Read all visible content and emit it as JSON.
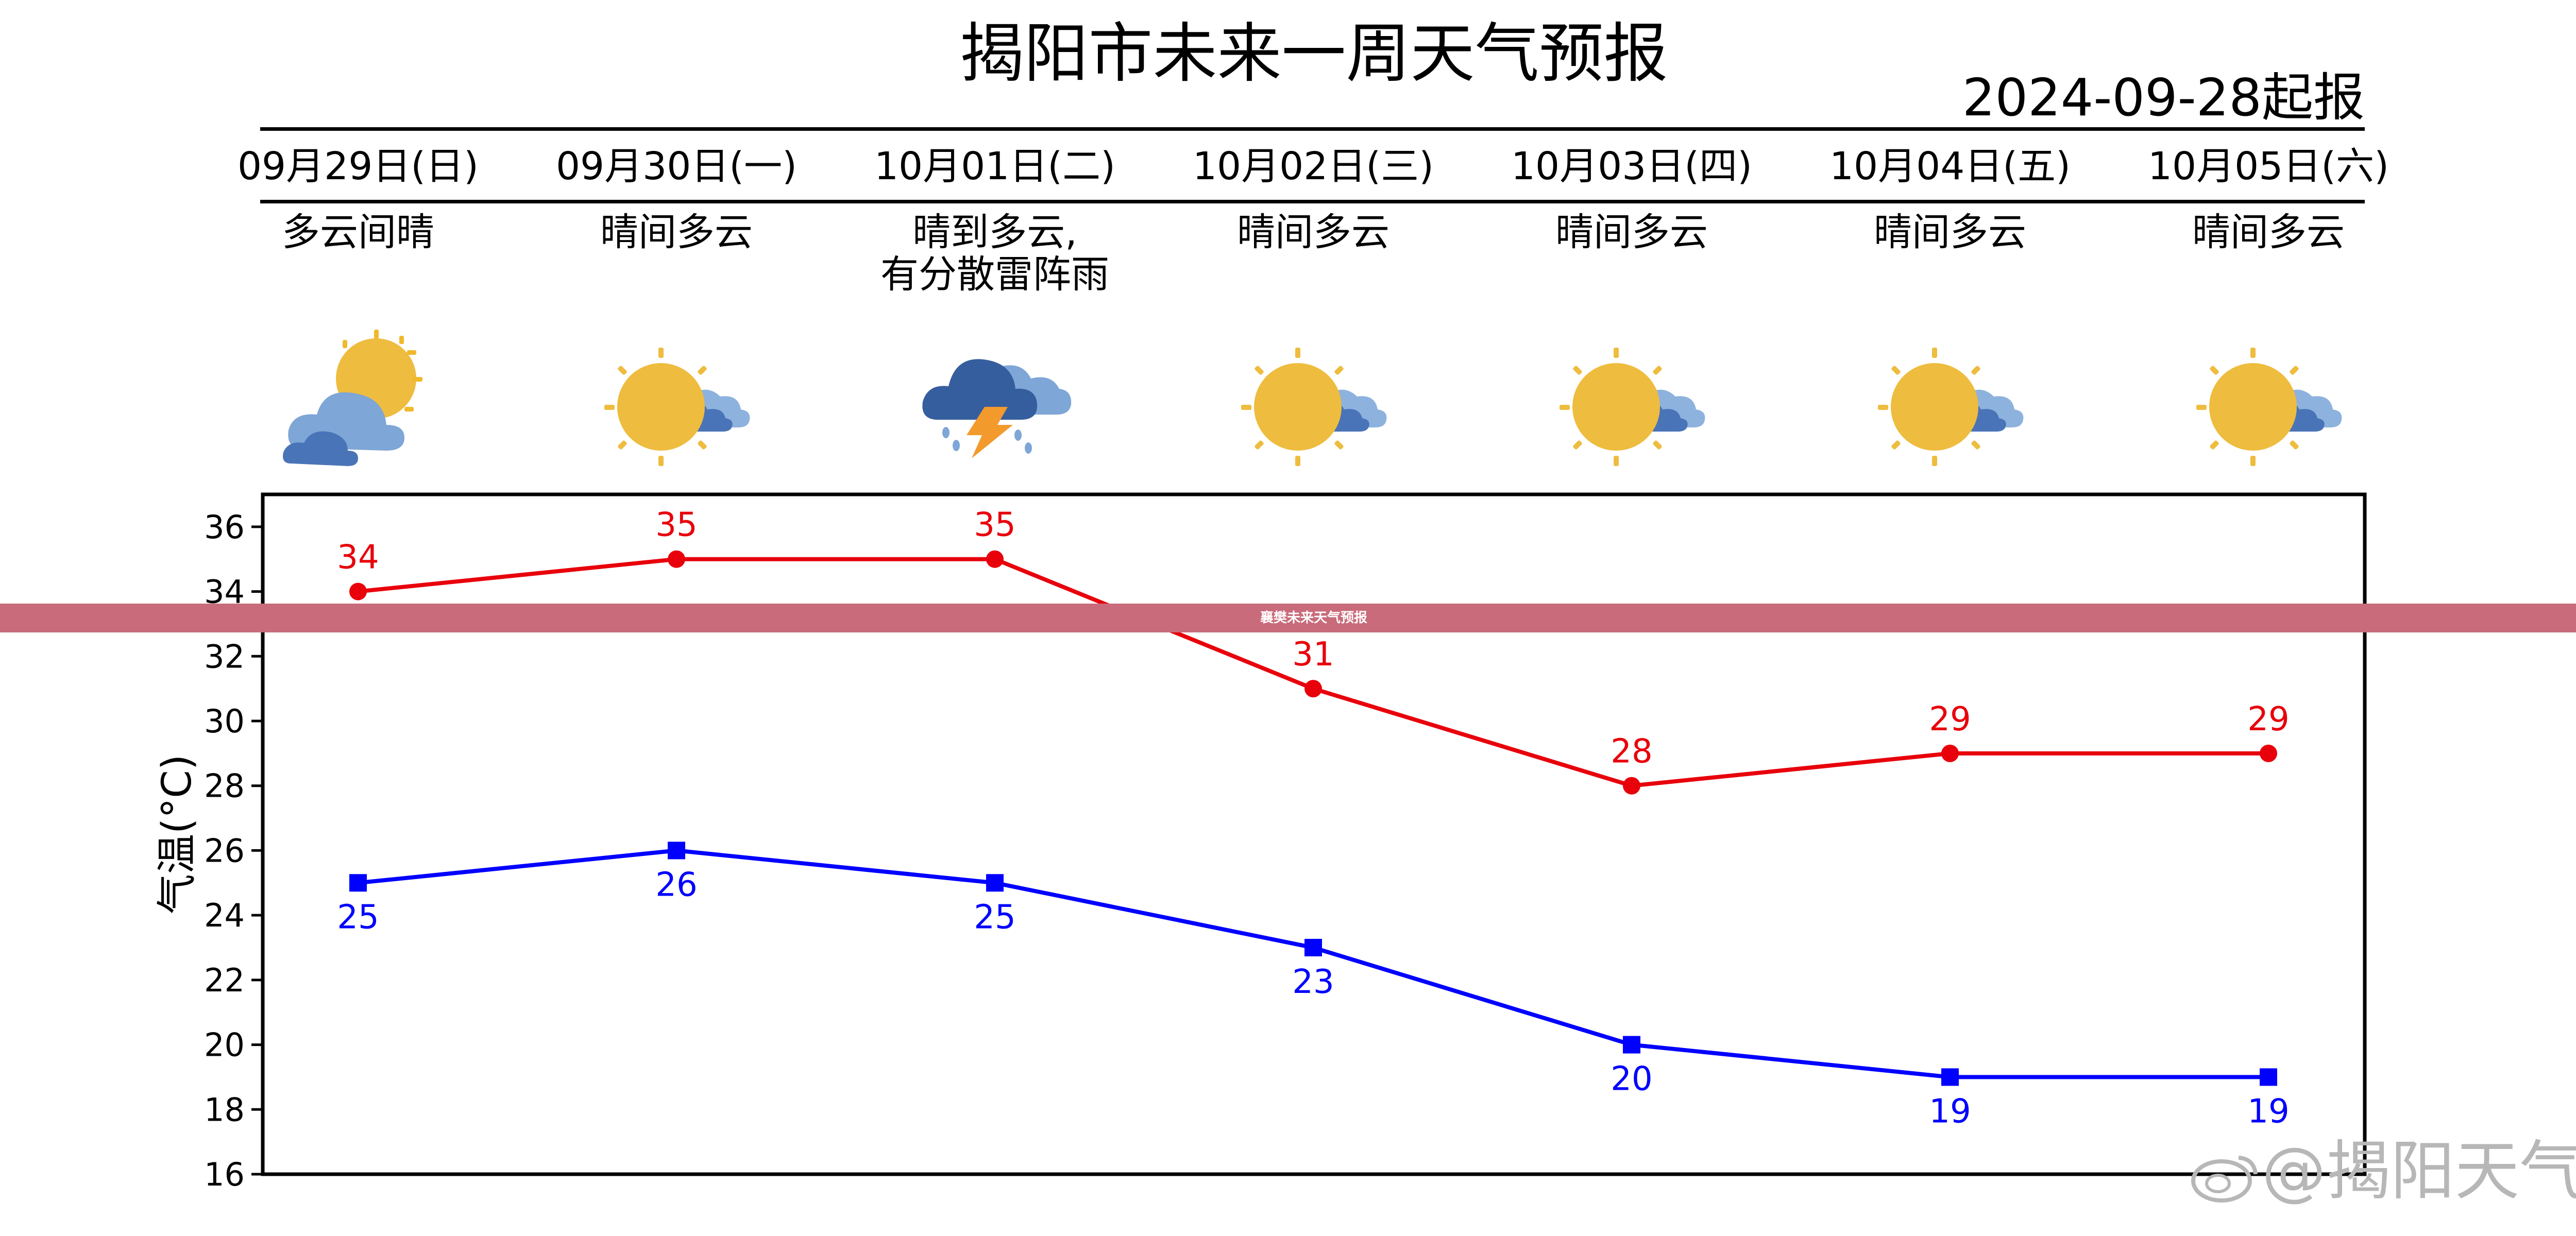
{
  "header": {
    "title": "揭阳市未来一周天气预报",
    "issued": "2024-09-28起报"
  },
  "days": [
    {
      "date": "09月29日(日)",
      "desc": "多云间晴",
      "icon": "partly-cloudy-sun-icon"
    },
    {
      "date": "09月30日(一)",
      "desc": "晴间多云",
      "icon": "sunny-with-clouds-icon"
    },
    {
      "date": "10月01日(二)",
      "desc": "晴到多云,\n有分散雷阵雨",
      "icon": "thunderstorm-icon"
    },
    {
      "date": "10月02日(三)",
      "desc": "晴间多云",
      "icon": "sunny-with-clouds-icon"
    },
    {
      "date": "10月03日(四)",
      "desc": "晴间多云",
      "icon": "sunny-with-clouds-icon"
    },
    {
      "date": "10月04日(五)",
      "desc": "晴间多云",
      "icon": "sunny-with-clouds-icon"
    },
    {
      "date": "10月05日(六)",
      "desc": "晴间多云",
      "icon": "sunny-with-clouds-icon"
    }
  ],
  "banner": "襄樊未来天气预报",
  "watermark": "@揭阳天气",
  "chart_data": {
    "type": "line",
    "categories": [
      "09月29日(日)",
      "09月30日(一)",
      "10月01日(二)",
      "10月02日(三)",
      "10月03日(四)",
      "10月04日(五)",
      "10月05日(六)"
    ],
    "ylabel": "气温(°C)",
    "ylim": [
      16,
      37
    ],
    "yticks": [
      "16",
      "18",
      "20",
      "22",
      "24",
      "26",
      "28",
      "30",
      "32",
      "34",
      "36"
    ],
    "grid": false,
    "series": [
      {
        "values": [
          34,
          35,
          35,
          31,
          28,
          29,
          29
        ],
        "color": "#e8000b",
        "marker": "circle"
      },
      {
        "values": [
          25,
          26,
          25,
          23,
          20,
          19,
          19
        ],
        "color": "#0000ff",
        "marker": "square"
      }
    ]
  }
}
